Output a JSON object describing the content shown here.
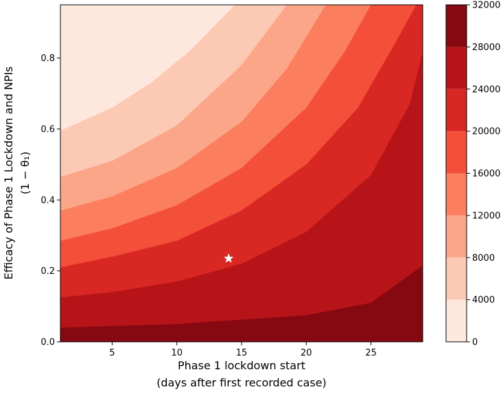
{
  "chart_data": {
    "type": "contourf",
    "title": "",
    "xlabel_lines": [
      "Phase 1 lockdown start",
      "(days after first recorded case)"
    ],
    "ylabel_lines": [
      "Efficacy of Phase 1 Lockdown and NPIs",
      "(1 − θ₁)"
    ],
    "xlim": [
      1,
      29
    ],
    "ylim": [
      0,
      0.95
    ],
    "xticks": [
      5,
      10,
      15,
      20,
      25
    ],
    "yticks": [
      0.0,
      0.2,
      0.4,
      0.6,
      0.8
    ],
    "ytick_labels": [
      "0.0",
      "0.2",
      "0.4",
      "0.6",
      "0.8"
    ],
    "colorbar": {
      "levels": [
        0,
        4000,
        8000,
        12000,
        16000,
        20000,
        24000,
        28000,
        32000
      ],
      "tick_labels": [
        "0",
        "4000",
        "8000",
        "12000",
        "16000",
        "20000",
        "24000",
        "28000",
        "32000"
      ],
      "colors": [
        "#fee8dd",
        "#fcc9b4",
        "#fca689",
        "#fb7f5f",
        "#f44f39",
        "#d92723",
        "#b71419",
        "#860811"
      ]
    },
    "contour_boundaries": [
      {
        "level": 28000,
        "points": [
          [
            1,
            0.04
          ],
          [
            10,
            0.05
          ],
          [
            20,
            0.075
          ],
          [
            25,
            0.11
          ],
          [
            29,
            0.215
          ]
        ]
      },
      {
        "level": 24000,
        "points": [
          [
            1,
            0.125
          ],
          [
            5,
            0.14
          ],
          [
            10,
            0.17
          ],
          [
            15,
            0.22
          ],
          [
            20,
            0.31
          ],
          [
            25,
            0.47
          ],
          [
            28,
            0.67
          ],
          [
            29,
            0.82
          ]
        ]
      },
      {
        "level": 20000,
        "points": [
          [
            1,
            0.21
          ],
          [
            5,
            0.24
          ],
          [
            10,
            0.285
          ],
          [
            15,
            0.37
          ],
          [
            20,
            0.5
          ],
          [
            24,
            0.66
          ],
          [
            27,
            0.85
          ],
          [
            28.5,
            0.95
          ]
        ]
      },
      {
        "level": 16000,
        "points": [
          [
            1,
            0.285
          ],
          [
            5,
            0.32
          ],
          [
            10,
            0.385
          ],
          [
            15,
            0.49
          ],
          [
            20,
            0.66
          ],
          [
            23,
            0.82
          ],
          [
            25,
            0.95
          ]
        ]
      },
      {
        "level": 12000,
        "points": [
          [
            1,
            0.37
          ],
          [
            5,
            0.41
          ],
          [
            10,
            0.49
          ],
          [
            15,
            0.62
          ],
          [
            18.5,
            0.77
          ],
          [
            21.5,
            0.95
          ]
        ]
      },
      {
        "level": 8000,
        "points": [
          [
            1,
            0.465
          ],
          [
            5,
            0.51
          ],
          [
            10,
            0.61
          ],
          [
            15,
            0.78
          ],
          [
            18.5,
            0.95
          ]
        ]
      },
      {
        "level": 4000,
        "points": [
          [
            1,
            0.595
          ],
          [
            5,
            0.66
          ],
          [
            8,
            0.73
          ],
          [
            11,
            0.82
          ],
          [
            14.5,
            0.95
          ]
        ]
      }
    ],
    "marker": {
      "symbol": "star",
      "x": 14,
      "y": 0.235,
      "color": "#ffffff"
    }
  }
}
